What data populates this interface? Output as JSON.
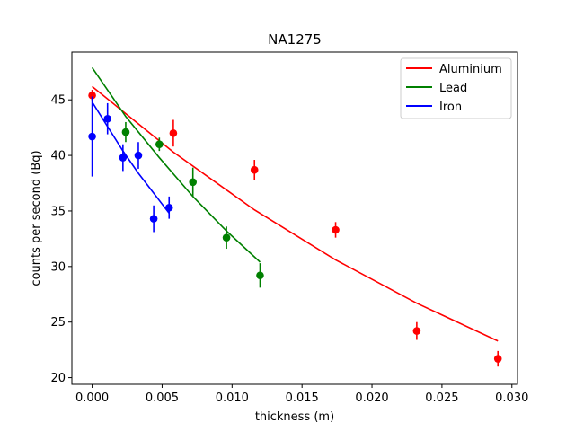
{
  "chart_data": {
    "type": "scatter",
    "title": "NA1275",
    "xlabel": "thickness (m)",
    "ylabel": "counts per second (Bq)",
    "xlim": [
      -0.00145,
      0.0304
    ],
    "ylim": [
      19.4,
      49.3
    ],
    "xticks": [
      0.0,
      0.005,
      0.01,
      0.015,
      0.02,
      0.025,
      0.03
    ],
    "xtick_labels": [
      "0.000",
      "0.005",
      "0.010",
      "0.015",
      "0.020",
      "0.025",
      "0.030"
    ],
    "yticks": [
      20,
      25,
      30,
      35,
      40,
      45
    ],
    "ytick_labels": [
      "20",
      "25",
      "30",
      "35",
      "40",
      "45"
    ],
    "grid": false,
    "legend_position": "top-right",
    "series": [
      {
        "name": "Aluminium",
        "color": "#ff0000",
        "points": [
          {
            "x": 0.0,
            "y": 45.4,
            "err": 0.5
          },
          {
            "x": 0.0058,
            "y": 42.0,
            "err": 1.2
          },
          {
            "x": 0.0116,
            "y": 38.7,
            "err": 0.9
          },
          {
            "x": 0.0174,
            "y": 33.3,
            "err": 0.7
          },
          {
            "x": 0.0232,
            "y": 24.2,
            "err": 0.8
          },
          {
            "x": 0.029,
            "y": 21.7,
            "err": 0.7
          }
        ],
        "fit": {
          "x": [
            0.0,
            0.0058,
            0.0116,
            0.0174,
            0.0232,
            0.029
          ],
          "y": [
            46.2,
            40.3,
            35.1,
            30.6,
            26.7,
            23.3
          ]
        }
      },
      {
        "name": "Lead",
        "color": "#008000",
        "points": [
          {
            "x": 0.0024,
            "y": 42.1,
            "err": 0.9
          },
          {
            "x": 0.0048,
            "y": 41.0,
            "err": 0.6
          },
          {
            "x": 0.0072,
            "y": 37.6,
            "err": 1.3
          },
          {
            "x": 0.0096,
            "y": 32.6,
            "err": 1.0
          },
          {
            "x": 0.012,
            "y": 29.2,
            "err": 1.1
          }
        ],
        "fit": {
          "x": [
            0.0,
            0.0024,
            0.0048,
            0.0072,
            0.0096,
            0.012
          ],
          "y": [
            47.9,
            43.5,
            39.8,
            36.3,
            33.2,
            30.4
          ]
        }
      },
      {
        "name": "Iron",
        "color": "#0000ff",
        "points": [
          {
            "x": 0.0,
            "y": 41.7,
            "err": 3.6
          },
          {
            "x": 0.0011,
            "y": 43.3,
            "err": 1.4
          },
          {
            "x": 0.0022,
            "y": 39.8,
            "err": 1.2
          },
          {
            "x": 0.0033,
            "y": 40.0,
            "err": 1.2
          },
          {
            "x": 0.0044,
            "y": 34.3,
            "err": 1.2
          },
          {
            "x": 0.0055,
            "y": 35.3,
            "err": 1.0
          }
        ],
        "fit": {
          "x": [
            0.0,
            0.0011,
            0.0022,
            0.0033,
            0.0044,
            0.0055
          ],
          "y": [
            44.8,
            42.6,
            40.4,
            38.4,
            36.6,
            34.8
          ]
        }
      }
    ]
  }
}
